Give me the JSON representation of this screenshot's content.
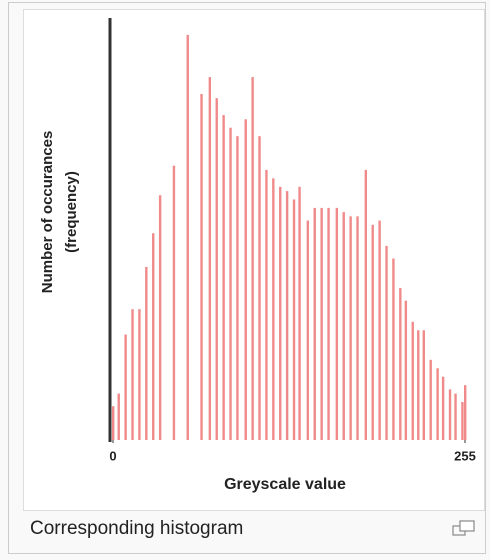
{
  "chart_data": {
    "type": "histogram",
    "x_label": "Greyscale value",
    "y_label": [
      "Number of occurances",
      "(frequency)"
    ],
    "x": [
      0,
      4,
      9,
      14,
      19,
      24,
      29,
      34,
      44,
      54,
      64,
      70,
      75,
      80,
      85,
      90,
      96,
      101,
      106,
      111,
      116,
      121,
      126,
      131,
      135,
      141,
      146,
      151,
      156,
      162,
      167,
      172,
      177,
      183,
      188,
      193,
      198,
      203,
      208,
      212,
      217,
      221,
      225,
      230,
      235,
      239,
      244,
      248,
      253,
      255
    ],
    "values": [
      8,
      11,
      25,
      31,
      31,
      41,
      49,
      58,
      65,
      96,
      82,
      86,
      81,
      77,
      74,
      72,
      76,
      86,
      72,
      64,
      62,
      60,
      59,
      57,
      60,
      52,
      55,
      55,
      55,
      55,
      54,
      53,
      53,
      64,
      51,
      52,
      46,
      43,
      36,
      33,
      28,
      26,
      26,
      19,
      17,
      15,
      12,
      11,
      9,
      13
    ],
    "color": "#f08a8a",
    "xlim": [
      0,
      255
    ],
    "xticks": [
      0,
      255
    ],
    "ylim": [
      0,
      100
    ]
  },
  "caption": "Corresponding histogram"
}
